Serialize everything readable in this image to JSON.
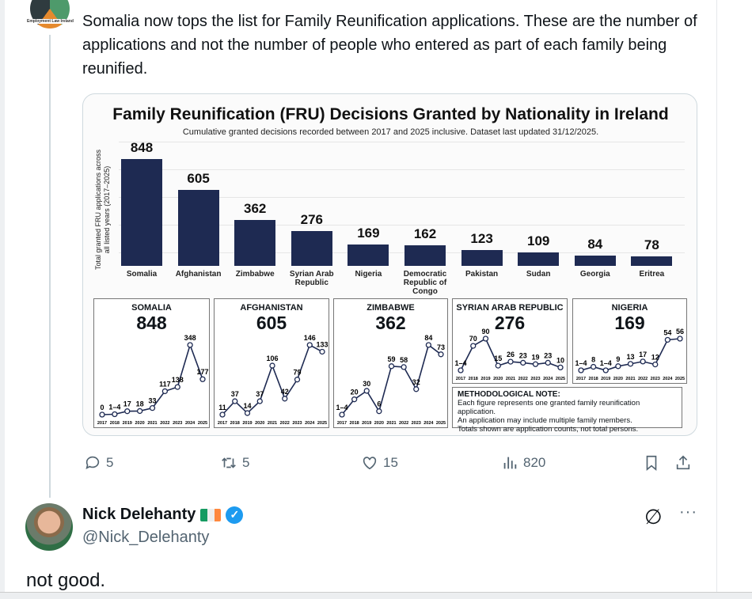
{
  "post": {
    "avatar_logo_text": "Employment Law Ireland",
    "text": "Somalia now tops the list for  Family Reunification applications. These are the number of applications and not the number of people who entered as part of each family being reunified.",
    "stats": {
      "replies": "5",
      "reposts": "5",
      "likes": "15",
      "views": "820"
    }
  },
  "reply": {
    "name": "Nick Delehanty",
    "handle": "@Nick_Delehanty",
    "text": "not good.",
    "more": "···"
  },
  "colors": {
    "bar": "#1e2a52",
    "verified": "#1d9bf0",
    "flag_green": "#169b62",
    "flag_white": "#ffffff",
    "flag_orange": "#ff883e"
  },
  "chart_data": [
    {
      "type": "bar",
      "title": "Family Reunification (FRU) Decisions Granted by Nationality in Ireland",
      "subtitle": "Cumulative granted decisions recorded between 2017 and 2025 inclusive. Dataset last updated 31/12/2025.",
      "ylabel": "Total granted FRU applications across all listed years (2017–2025)",
      "xlabel": "",
      "categories": [
        "Somalia",
        "Afghanistan",
        "Zimbabwe",
        "Syrian Arab Republic",
        "Nigeria",
        "Democratic Republic of Congo",
        "Pakistan",
        "Sudan",
        "Georgia",
        "Eritrea"
      ],
      "values": [
        848,
        605,
        362,
        276,
        169,
        162,
        123,
        109,
        84,
        78
      ],
      "ylim": [
        0,
        848
      ]
    },
    {
      "type": "line",
      "title": "SOMALIA",
      "total": "848",
      "x": [
        "2017",
        "2018",
        "2019",
        "2020",
        "2021",
        "2022",
        "2023",
        "2024",
        "2025"
      ],
      "labels": [
        "0",
        "1–4",
        "17",
        "18",
        "33",
        "117",
        "138",
        "348",
        "177"
      ],
      "values": [
        0,
        2,
        17,
        18,
        33,
        117,
        138,
        348,
        177
      ]
    },
    {
      "type": "line",
      "title": "AFGHANISTAN",
      "total": "605",
      "x": [
        "2017",
        "2018",
        "2019",
        "2020",
        "2021",
        "2022",
        "2023",
        "2024",
        "2025"
      ],
      "labels": [
        "11",
        "37",
        "14",
        "37",
        "106",
        "42",
        "79",
        "146",
        "133"
      ],
      "values": [
        11,
        37,
        14,
        37,
        106,
        42,
        79,
        146,
        133
      ]
    },
    {
      "type": "line",
      "title": "ZIMBABWE",
      "total": "362",
      "x": [
        "2017",
        "2018",
        "2019",
        "2020",
        "2021",
        "2022",
        "2023",
        "2024",
        "2025"
      ],
      "labels": [
        "1–4",
        "20",
        "30",
        "6",
        "59",
        "58",
        "32",
        "84",
        "73"
      ],
      "values": [
        2,
        20,
        30,
        6,
        59,
        58,
        32,
        84,
        73
      ]
    },
    {
      "type": "line",
      "title": "SYRIAN ARAB REPUBLIC",
      "total": "276",
      "x": [
        "2017",
        "2018",
        "2019",
        "2020",
        "2021",
        "2022",
        "2023",
        "2024",
        "2025"
      ],
      "labels": [
        "1–4",
        "70",
        "90",
        "15",
        "26",
        "23",
        "19",
        "23",
        "10"
      ],
      "values": [
        2,
        70,
        90,
        15,
        26,
        23,
        19,
        23,
        10
      ]
    },
    {
      "type": "line",
      "title": "NIGERIA",
      "total": "169",
      "x": [
        "2017",
        "2018",
        "2019",
        "2020",
        "2021",
        "2022",
        "2023",
        "2024",
        "2025"
      ],
      "labels": [
        "1–4",
        "8",
        "1–4",
        "9",
        "13",
        "17",
        "12",
        "54",
        "56"
      ],
      "values": [
        2,
        8,
        2,
        9,
        13,
        17,
        12,
        54,
        56
      ]
    }
  ],
  "note": {
    "title": "METHODOLOGICAL NOTE:",
    "lines": [
      "Each figure represents one granted family reunification application.",
      "An application may include multiple family members.",
      "Totals shown are application counts, not total persons."
    ]
  }
}
